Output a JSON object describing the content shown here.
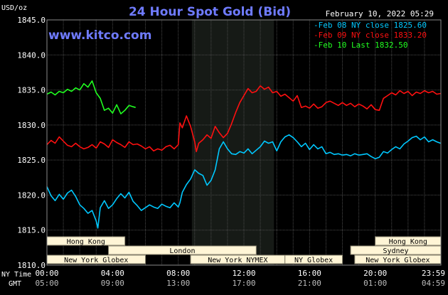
{
  "header": {
    "unit_label": "USD/oz",
    "title": "24 Hour Spot Gold (Bid)",
    "datetime": "February 10, 2022 05:29",
    "website": "www.kitco.com"
  },
  "colors": {
    "background": "#000000",
    "plot_background": "#000000",
    "nymex_shade": "#161a16",
    "grid": "#4a4a4a",
    "axis_text": "#ffffff",
    "title": "#6f7bff",
    "website": "#6f7bff",
    "feb08": "#00c8ff",
    "feb09": "#ff1010",
    "feb10": "#20ff20",
    "session_fill": "#fff5d6",
    "session_text": "#000000"
  },
  "legend": [
    {
      "label": "Feb 08 NY close 1825.60",
      "color": "#00c8ff",
      "series": "feb08"
    },
    {
      "label": "Feb 09 NY close 1833.20",
      "color": "#ff1010",
      "series": "feb09"
    },
    {
      "label": "Feb 10 Last 1832.50",
      "color": "#20ff20",
      "series": "feb10"
    }
  ],
  "sessions": [
    {
      "name": "Hong Kong",
      "start": 0,
      "end": 4.75
    },
    {
      "name": "Hong Kong",
      "start": 20,
      "end": 24
    },
    {
      "name": "London",
      "start": 3.75,
      "end": 12.75
    },
    {
      "name": "Sydney",
      "start": 18.5,
      "end": 24
    },
    {
      "name": "New York Globex",
      "start": 0,
      "end": 6
    },
    {
      "name": "New York NYMEX",
      "start": 8.75,
      "end": 14.5
    },
    {
      "name": "NY Globex",
      "start": 14.5,
      "end": 18
    },
    {
      "name": "New York Globex",
      "start": 18.75,
      "end": 24
    }
  ],
  "x_axis": {
    "row1_label": "NY Time",
    "row2_label": "GMT",
    "ticks_ny": [
      "00:00",
      "04:00",
      "08:00",
      "12:00",
      "16:00",
      "20:00",
      "23:59"
    ],
    "ticks_gmt": [
      "05:00",
      "09:00",
      "13:00",
      "17:00",
      "21:00",
      "01:00",
      "04:59"
    ]
  },
  "chart_data": {
    "type": "line",
    "xlabel": "NY Time",
    "ylabel": "USD/oz",
    "xlim": [
      0,
      24
    ],
    "ylim": [
      1810,
      1845
    ],
    "y_ticks": [
      "1845.0",
      "1840.0",
      "1835.0",
      "1830.0",
      "1825.0",
      "1820.0",
      "1815.0",
      "1810.0"
    ],
    "y_tick_values": [
      1845,
      1840,
      1835,
      1830,
      1825,
      1820,
      1815,
      1810
    ],
    "x_tick_values": [
      0,
      4,
      8,
      12,
      16,
      20,
      23.98
    ],
    "nymex_hours": [
      8.83,
      13.83
    ],
    "grid": true,
    "legend_position": "top-right",
    "series": [
      {
        "name": "Feb 08 NY close 1825.60",
        "key": "feb08",
        "color": "#00c8ff",
        "x": [
          0,
          0.25,
          0.5,
          0.75,
          1,
          1.25,
          1.5,
          1.75,
          2,
          2.25,
          2.5,
          2.75,
          3,
          3.1,
          3.25,
          3.5,
          3.75,
          4,
          4.25,
          4.5,
          4.75,
          5,
          5.25,
          5.5,
          5.75,
          6,
          6.25,
          6.5,
          6.75,
          7,
          7.25,
          7.5,
          7.75,
          8,
          8.1,
          8.25,
          8.5,
          8.75,
          9,
          9.25,
          9.5,
          9.75,
          10,
          10.25,
          10.5,
          10.75,
          11,
          11.25,
          11.5,
          11.75,
          12,
          12.25,
          12.5,
          12.75,
          13,
          13.25,
          13.5,
          13.75,
          14,
          14.25,
          14.5,
          14.75,
          15,
          15.25,
          15.5,
          15.75,
          16,
          16.25,
          16.5,
          16.75,
          17,
          17.25,
          17.5,
          17.75,
          18,
          18.25,
          18.5,
          18.75,
          19,
          19.25,
          19.5,
          19.75,
          20,
          20.25,
          20.5,
          20.75,
          21,
          21.25,
          21.5,
          21.75,
          22,
          22.25,
          22.5,
          22.75,
          23,
          23.25,
          23.5,
          23.75,
          23.98
        ],
        "y": [
          1821.2,
          1819.9,
          1819.2,
          1820.1,
          1819.4,
          1820.3,
          1820.7,
          1819.8,
          1818.6,
          1818.1,
          1817.4,
          1817.8,
          1816.3,
          1815.3,
          1818.2,
          1819.2,
          1818.1,
          1818.6,
          1819.5,
          1820.2,
          1819.6,
          1820.4,
          1819.1,
          1818.5,
          1817.8,
          1818.2,
          1818.6,
          1818.3,
          1818.1,
          1818.7,
          1818.4,
          1818.2,
          1818.9,
          1818.3,
          1818.9,
          1820.4,
          1821.5,
          1822.3,
          1823.6,
          1823.1,
          1822.8,
          1821.4,
          1822.1,
          1823.6,
          1826.6,
          1827.6,
          1826.6,
          1825.9,
          1825.8,
          1826.2,
          1826.0,
          1826.6,
          1825.9,
          1826.4,
          1826.9,
          1827.7,
          1827.4,
          1827.6,
          1826.3,
          1827.6,
          1828.3,
          1828.6,
          1828.2,
          1827.6,
          1826.9,
          1827.4,
          1826.5,
          1827.2,
          1826.6,
          1826.9,
          1825.9,
          1826.1,
          1825.8,
          1825.9,
          1825.7,
          1825.8,
          1825.6,
          1825.9,
          1825.7,
          1825.8,
          1825.9,
          1825.5,
          1825.2,
          1825.4,
          1826.2,
          1826.0,
          1826.5,
          1826.9,
          1826.6,
          1827.3,
          1827.7,
          1828.2,
          1828.4,
          1827.9,
          1828.3,
          1827.6,
          1827.9,
          1827.6,
          1827.4
        ]
      },
      {
        "name": "Feb 09 NY close 1833.20",
        "key": "feb09",
        "color": "#ff1010",
        "x": [
          0,
          0.25,
          0.5,
          0.75,
          1,
          1.25,
          1.5,
          1.75,
          2,
          2.25,
          2.5,
          2.75,
          3,
          3.25,
          3.5,
          3.75,
          4,
          4.25,
          4.5,
          4.75,
          5,
          5.25,
          5.5,
          5.75,
          6,
          6.25,
          6.5,
          6.75,
          7,
          7.25,
          7.5,
          7.75,
          8,
          8.1,
          8.25,
          8.5,
          8.75,
          9,
          9.1,
          9.25,
          9.5,
          9.75,
          10,
          10.25,
          10.5,
          10.75,
          11,
          11.25,
          11.5,
          11.75,
          12,
          12.25,
          12.5,
          12.75,
          13,
          13.25,
          13.5,
          13.75,
          14,
          14.25,
          14.5,
          14.75,
          15,
          15.25,
          15.5,
          15.75,
          16,
          16.25,
          16.5,
          16.75,
          17,
          17.25,
          17.5,
          17.75,
          18,
          18.25,
          18.5,
          18.75,
          19,
          19.25,
          19.5,
          19.75,
          20,
          20.25,
          20.5,
          20.75,
          21,
          21.25,
          21.5,
          21.75,
          22,
          22.25,
          22.5,
          22.75,
          23,
          23.25,
          23.5,
          23.75,
          23.98
        ],
        "y": [
          1827.2,
          1827.8,
          1827.4,
          1828.3,
          1827.7,
          1827.1,
          1826.9,
          1827.4,
          1826.9,
          1826.6,
          1826.8,
          1827.2,
          1826.7,
          1827.6,
          1827.3,
          1826.8,
          1827.9,
          1827.5,
          1827.2,
          1826.8,
          1827.6,
          1827.2,
          1827.3,
          1827.0,
          1826.6,
          1826.9,
          1826.3,
          1826.6,
          1826.4,
          1826.9,
          1827.1,
          1826.6,
          1827.2,
          1830.3,
          1829.6,
          1831.3,
          1829.8,
          1827.6,
          1826.2,
          1827.4,
          1827.9,
          1828.6,
          1828.1,
          1829.8,
          1828.9,
          1828.2,
          1828.8,
          1830.2,
          1831.8,
          1833.2,
          1834.2,
          1835.2,
          1834.6,
          1834.8,
          1835.6,
          1835.1,
          1835.4,
          1834.6,
          1834.8,
          1834.1,
          1834.4,
          1833.9,
          1833.4,
          1834.2,
          1832.5,
          1832.7,
          1832.4,
          1833.0,
          1832.4,
          1832.6,
          1833.2,
          1833.4,
          1833.1,
          1832.8,
          1833.2,
          1832.8,
          1833.1,
          1832.6,
          1833.0,
          1832.7,
          1832.3,
          1832.9,
          1832.2,
          1832.1,
          1833.8,
          1834.2,
          1834.6,
          1834.3,
          1834.9,
          1834.5,
          1834.8,
          1834.2,
          1834.7,
          1834.5,
          1834.9,
          1834.6,
          1834.8,
          1834.4,
          1834.5
        ]
      },
      {
        "name": "Feb 10 Last 1832.50",
        "key": "feb10",
        "color": "#20ff20",
        "x": [
          0,
          0.25,
          0.5,
          0.75,
          1,
          1.25,
          1.5,
          1.75,
          2,
          2.25,
          2.5,
          2.75,
          3,
          3.25,
          3.5,
          3.75,
          4,
          4.25,
          4.5,
          4.75,
          5,
          5.25,
          5.4
        ],
        "y": [
          1834.4,
          1834.7,
          1834.3,
          1834.8,
          1834.6,
          1835.1,
          1834.8,
          1835.3,
          1835.0,
          1835.9,
          1835.4,
          1836.3,
          1834.6,
          1833.8,
          1832.1,
          1832.4,
          1831.7,
          1832.9,
          1831.6,
          1832.1,
          1832.8,
          1832.6,
          1832.5
        ]
      }
    ]
  }
}
